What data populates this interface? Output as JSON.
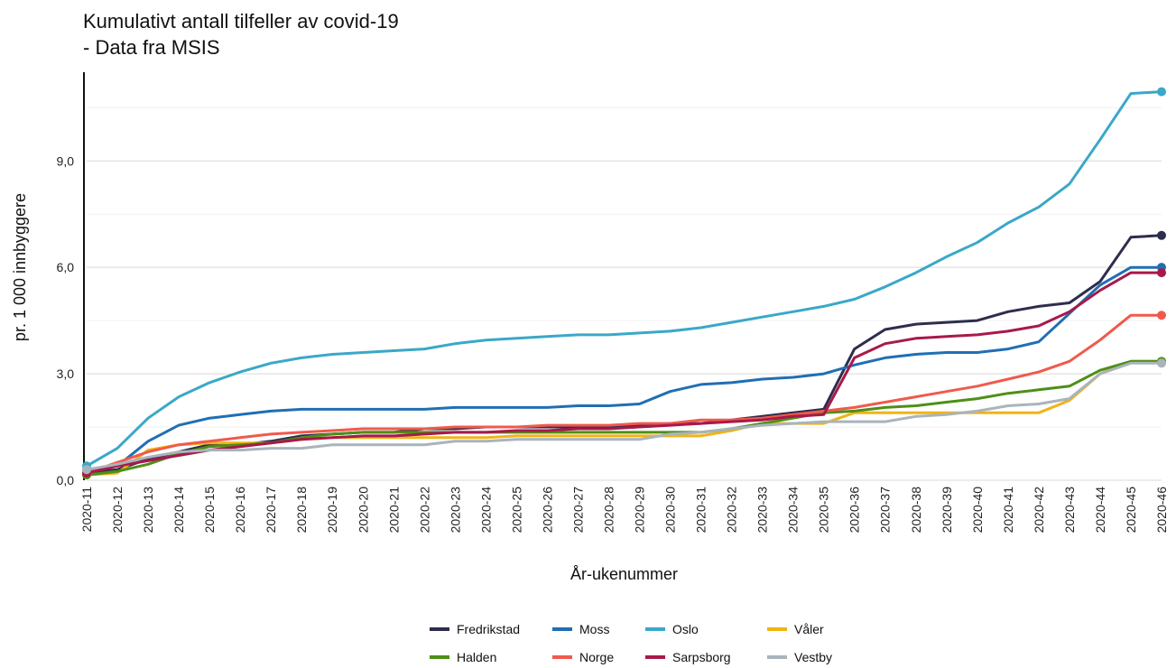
{
  "chart_data": {
    "type": "line",
    "title_lines": [
      "Kumulativt antall tilfeller av covid-19",
      "- Data fra MSIS"
    ],
    "xlabel": "År-ukenummer",
    "ylabel": "pr. 1 000 innbyggere",
    "ylim": [
      0,
      11.5
    ],
    "y_ticks": [
      0,
      3,
      6,
      9
    ],
    "y_tick_labels": [
      "0,0",
      "3,0",
      "6,0",
      "9,0"
    ],
    "grid": true,
    "legend_position": "bottom-center",
    "categories": [
      "2020-11",
      "2020-12",
      "2020-13",
      "2020-14",
      "2020-15",
      "2020-16",
      "2020-17",
      "2020-18",
      "2020-19",
      "2020-20",
      "2020-21",
      "2020-22",
      "2020-23",
      "2020-24",
      "2020-25",
      "2020-26",
      "2020-27",
      "2020-28",
      "2020-29",
      "2020-30",
      "2020-31",
      "2020-32",
      "2020-33",
      "2020-34",
      "2020-35",
      "2020-36",
      "2020-37",
      "2020-38",
      "2020-39",
      "2020-40",
      "2020-41",
      "2020-42",
      "2020-43",
      "2020-44",
      "2020-45",
      "2020-46"
    ],
    "series": [
      {
        "name": "Fredrikstad",
        "color": "#2e2d4e",
        "values": [
          0.2,
          0.3,
          0.6,
          0.8,
          1.0,
          1.0,
          1.1,
          1.25,
          1.3,
          1.35,
          1.35,
          1.45,
          1.45,
          1.5,
          1.5,
          1.5,
          1.5,
          1.5,
          1.55,
          1.6,
          1.6,
          1.7,
          1.8,
          1.9,
          2.0,
          3.7,
          4.25,
          4.4,
          4.45,
          4.5,
          4.75,
          4.9,
          5.0,
          5.6,
          6.85,
          6.9
        ]
      },
      {
        "name": "Moss",
        "color": "#1f6fb4",
        "values": [
          0.3,
          0.4,
          1.1,
          1.55,
          1.75,
          1.85,
          1.95,
          2.0,
          2.0,
          2.0,
          2.0,
          2.0,
          2.05,
          2.05,
          2.05,
          2.05,
          2.1,
          2.1,
          2.15,
          2.5,
          2.7,
          2.75,
          2.85,
          2.9,
          3.0,
          3.25,
          3.45,
          3.55,
          3.6,
          3.6,
          3.7,
          3.9,
          4.7,
          5.5,
          6.0,
          6.0
        ]
      },
      {
        "name": "Oslo",
        "color": "#3aa8c8",
        "values": [
          0.4,
          0.9,
          1.75,
          2.35,
          2.75,
          3.05,
          3.3,
          3.45,
          3.55,
          3.6,
          3.65,
          3.7,
          3.85,
          3.95,
          4.0,
          4.05,
          4.1,
          4.1,
          4.15,
          4.2,
          4.3,
          4.45,
          4.6,
          4.75,
          4.9,
          5.1,
          5.45,
          5.85,
          6.3,
          6.7,
          7.25,
          7.7,
          8.35,
          9.6,
          10.9,
          10.95
        ]
      },
      {
        "name": "Våler",
        "color": "#f0b416",
        "values": [
          0.15,
          0.2,
          0.85,
          1.0,
          1.05,
          1.05,
          1.05,
          1.15,
          1.2,
          1.2,
          1.2,
          1.2,
          1.2,
          1.2,
          1.25,
          1.25,
          1.25,
          1.25,
          1.25,
          1.25,
          1.25,
          1.4,
          1.6,
          1.6,
          1.6,
          1.9,
          1.9,
          1.9,
          1.9,
          1.9,
          1.9,
          1.9,
          2.25,
          3.0,
          3.35,
          3.35
        ]
      },
      {
        "name": "Halden",
        "color": "#4e8f17",
        "values": [
          0.15,
          0.25,
          0.45,
          0.75,
          0.95,
          1.0,
          1.05,
          1.2,
          1.3,
          1.35,
          1.35,
          1.35,
          1.35,
          1.35,
          1.35,
          1.35,
          1.35,
          1.35,
          1.35,
          1.35,
          1.35,
          1.45,
          1.6,
          1.75,
          1.9,
          1.95,
          2.05,
          2.1,
          2.2,
          2.3,
          2.45,
          2.55,
          2.65,
          3.1,
          3.35,
          3.35
        ]
      },
      {
        "name": "Norge",
        "color": "#f05a4c",
        "values": [
          0.2,
          0.5,
          0.8,
          1.0,
          1.1,
          1.2,
          1.3,
          1.35,
          1.4,
          1.45,
          1.45,
          1.45,
          1.5,
          1.5,
          1.5,
          1.55,
          1.55,
          1.55,
          1.6,
          1.6,
          1.7,
          1.7,
          1.75,
          1.85,
          1.95,
          2.05,
          2.2,
          2.35,
          2.5,
          2.65,
          2.85,
          3.05,
          3.35,
          3.95,
          4.65,
          4.65
        ]
      },
      {
        "name": "Sarpsborg",
        "color": "#a8194b",
        "values": [
          0.2,
          0.4,
          0.55,
          0.7,
          0.85,
          0.95,
          1.05,
          1.15,
          1.2,
          1.25,
          1.25,
          1.3,
          1.35,
          1.35,
          1.4,
          1.4,
          1.45,
          1.45,
          1.5,
          1.55,
          1.6,
          1.65,
          1.7,
          1.8,
          1.85,
          3.45,
          3.85,
          4.0,
          4.05,
          4.1,
          4.2,
          4.35,
          4.75,
          5.35,
          5.85,
          5.85
        ]
      },
      {
        "name": "Vestby",
        "color": "#a9b4bb",
        "values": [
          0.3,
          0.45,
          0.65,
          0.8,
          0.85,
          0.85,
          0.9,
          0.9,
          1.0,
          1.0,
          1.0,
          1.0,
          1.1,
          1.1,
          1.15,
          1.15,
          1.15,
          1.15,
          1.15,
          1.3,
          1.35,
          1.45,
          1.55,
          1.6,
          1.65,
          1.65,
          1.65,
          1.8,
          1.85,
          1.95,
          2.1,
          2.15,
          2.3,
          3.0,
          3.3,
          3.3
        ]
      }
    ]
  }
}
